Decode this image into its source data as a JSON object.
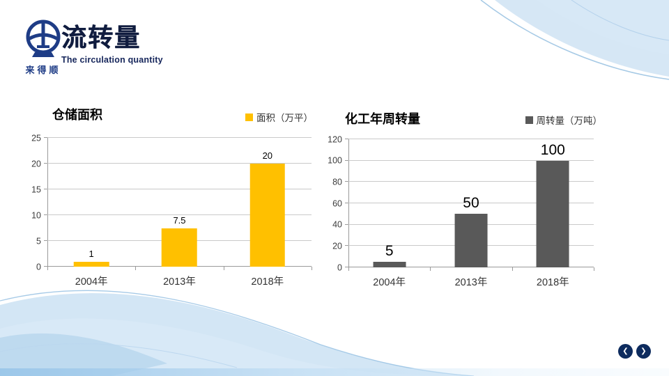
{
  "slide": {
    "brand_text": "来得顺",
    "title": "流转量",
    "subtitle": "The circulation quantity"
  },
  "nav": {
    "prev_label": "❮",
    "next_label": "❯"
  },
  "colors": {
    "accent_yellow": "#FFC000",
    "accent_gray": "#595959",
    "navy": "#0D2B5E",
    "deco_blue": "#BCD8EF"
  },
  "chart_data": [
    {
      "type": "bar",
      "title": "仓储面积",
      "legend": [
        {
          "label": "面积（万平）",
          "color": "#FFC000"
        }
      ],
      "legend_position": "top-right",
      "categories": [
        "2004年",
        "2013年",
        "2018年"
      ],
      "values": [
        1,
        7.5,
        20
      ],
      "data_labels": [
        "1",
        "7.5",
        "20"
      ],
      "bar_color": "#FFC000",
      "xlabel": "",
      "ylabel": "",
      "ylim": [
        0,
        25
      ],
      "yticks": [
        0,
        5,
        10,
        15,
        20,
        25
      ],
      "grid": true,
      "label_font_px": 13
    },
    {
      "type": "bar",
      "title": "化工年周转量",
      "legend": [
        {
          "label": "周转量（万吨）",
          "color": "#595959"
        }
      ],
      "legend_position": "top-right",
      "categories": [
        "2004年",
        "2013年",
        "2018年"
      ],
      "values": [
        5,
        50,
        100
      ],
      "data_labels": [
        "5",
        "50",
        "100"
      ],
      "bar_color": "#595959",
      "xlabel": "",
      "ylabel": "",
      "ylim": [
        0,
        120
      ],
      "yticks": [
        0,
        20,
        40,
        60,
        80,
        100,
        120
      ],
      "grid": true,
      "label_font_px": 21
    }
  ]
}
